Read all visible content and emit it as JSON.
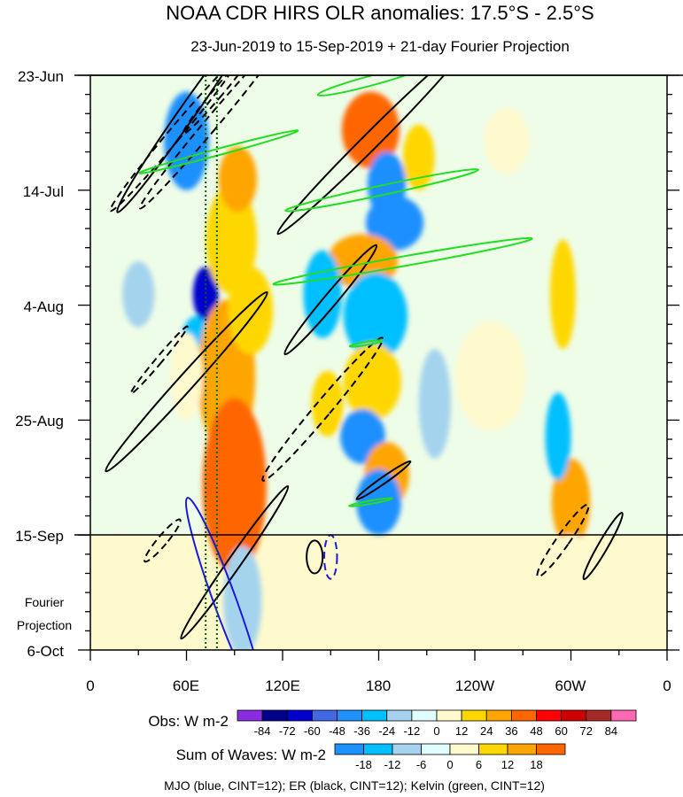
{
  "chart_data": {
    "type": "heatmap",
    "title": "NOAA CDR HIRS OLR anomalies: 17.5°S - 2.5°S",
    "subtitle": "23-Jun-2019 to 15-Sep-2019 + 21-day Fourier Projection",
    "y_tick_labels": [
      "23-Jun",
      "14-Jul",
      "4-Aug",
      "25-Aug",
      "15-Sep",
      "6-Oct"
    ],
    "projection_label_line1": "Fourier",
    "projection_label_line2": "Projection",
    "x_tick_labels": [
      "0",
      "60E",
      "120E",
      "180",
      "120W",
      "60W",
      "0"
    ],
    "x_range_deg": [
      0,
      360
    ],
    "y_range_days": [
      0,
      105
    ],
    "obs_end_day": 84,
    "obs_colorbar": {
      "label": "Obs: W m-2",
      "levels": [
        "-84",
        "-72",
        "-60",
        "-48",
        "-36",
        "-24",
        "-12",
        "0",
        "12",
        "24",
        "36",
        "48",
        "60",
        "72",
        "84"
      ],
      "colors": [
        "#8a2be2",
        "#00008b",
        "#0000cd",
        "#4169e1",
        "#1e90ff",
        "#00bfff",
        "#a4d3ee",
        "#e0ffff",
        "#fffacd",
        "#ffd700",
        "#ffa500",
        "#ff6600",
        "#ff0000",
        "#cd0000",
        "#a52a2a",
        "#ff69b4"
      ]
    },
    "waves_colorbar": {
      "label": "Sum of Waves: W m-2",
      "levels": [
        "-18",
        "-12",
        "-6",
        "0",
        "6",
        "12",
        "18"
      ],
      "colors": [
        "#1e90ff",
        "#00bfff",
        "#a4d3ee",
        "#e0ffff",
        "#fffacd",
        "#ffd700",
        "#ffa500",
        "#ff6600"
      ]
    },
    "footer": "MJO (blue, CINT=12); ER (black, CINT=12); Kelvin (green, CINT=12)",
    "blobs": [
      {
        "lon": 60,
        "day": 12,
        "rx": 14,
        "ry": 9,
        "v": -40
      },
      {
        "lon": 72,
        "day": 40,
        "rx": 8,
        "ry": 5,
        "v": -60
      },
      {
        "lon": 66,
        "day": 50,
        "rx": 10,
        "ry": 6,
        "v": -30
      },
      {
        "lon": 88,
        "day": 30,
        "rx": 16,
        "ry": 10,
        "v": 24
      },
      {
        "lon": 85,
        "day": 55,
        "rx": 18,
        "ry": 14,
        "v": 36
      },
      {
        "lon": 90,
        "day": 75,
        "rx": 20,
        "ry": 16,
        "v": 48
      },
      {
        "lon": 92,
        "day": 19,
        "rx": 12,
        "ry": 6,
        "v": 36
      },
      {
        "lon": 100,
        "day": 43,
        "rx": 14,
        "ry": 8,
        "v": 24
      },
      {
        "lon": 175,
        "day": 10,
        "rx": 18,
        "ry": 7,
        "v": 48
      },
      {
        "lon": 185,
        "day": 20,
        "rx": 12,
        "ry": 6,
        "v": -36
      },
      {
        "lon": 190,
        "day": 27,
        "rx": 18,
        "ry": 5,
        "v": -40
      },
      {
        "lon": 170,
        "day": 34,
        "rx": 22,
        "ry": 5,
        "v": 36
      },
      {
        "lon": 178,
        "day": 44,
        "rx": 20,
        "ry": 8,
        "v": -30
      },
      {
        "lon": 176,
        "day": 56,
        "rx": 18,
        "ry": 7,
        "v": 24
      },
      {
        "lon": 170,
        "day": 66,
        "rx": 14,
        "ry": 5,
        "v": -36
      },
      {
        "lon": 185,
        "day": 73,
        "rx": 14,
        "ry": 6,
        "v": 36
      },
      {
        "lon": 180,
        "day": 78,
        "rx": 14,
        "ry": 6,
        "v": -40
      },
      {
        "lon": 145,
        "day": 40,
        "rx": 12,
        "ry": 8,
        "v": -24
      },
      {
        "lon": 148,
        "day": 60,
        "rx": 10,
        "ry": 6,
        "v": 24
      },
      {
        "lon": 295,
        "day": 40,
        "rx": 8,
        "ry": 10,
        "v": 24
      },
      {
        "lon": 300,
        "day": 78,
        "rx": 12,
        "ry": 8,
        "v": 36
      },
      {
        "lon": 292,
        "day": 66,
        "rx": 8,
        "ry": 8,
        "v": -24
      },
      {
        "lon": 205,
        "day": 15,
        "rx": 10,
        "ry": 6,
        "v": 24
      },
      {
        "lon": 260,
        "day": 12,
        "rx": 14,
        "ry": 6,
        "v": 12
      },
      {
        "lon": 250,
        "day": 55,
        "rx": 22,
        "ry": 10,
        "v": 12
      },
      {
        "lon": 60,
        "day": 55,
        "rx": 10,
        "ry": 8,
        "v": 12
      },
      {
        "lon": 30,
        "day": 40,
        "rx": 10,
        "ry": 6,
        "v": -12
      },
      {
        "lon": 215,
        "day": 60,
        "rx": 10,
        "ry": 10,
        "v": -12
      },
      {
        "lon": 95,
        "day": 96,
        "rx": 12,
        "ry": 10,
        "v": -12
      },
      {
        "lon": 20,
        "day": 92,
        "rx": 16,
        "ry": 8,
        "v": 6
      },
      {
        "lon": 200,
        "day": 95,
        "rx": 30,
        "ry": 7,
        "v": 6
      },
      {
        "lon": 300,
        "day": 90,
        "rx": 18,
        "ry": 6,
        "v": 6
      }
    ],
    "er_contours": [
      {
        "lon": 60,
        "day": 7,
        "rx": 5,
        "ry": 22,
        "rot": 35,
        "dash": false
      },
      {
        "lon": 52,
        "day": 11,
        "rx": 4,
        "ry": 18,
        "rot": 40,
        "dash": true
      },
      {
        "lon": 75,
        "day": 9,
        "rx": 4,
        "ry": 20,
        "rot": 40,
        "dash": true
      },
      {
        "lon": 175,
        "day": 12,
        "rx": 5,
        "ry": 24,
        "rot": 45,
        "dash": false
      },
      {
        "lon": 150,
        "day": 41,
        "rx": 4,
        "ry": 13,
        "rot": 40,
        "dash": false
      },
      {
        "lon": 60,
        "day": 56,
        "rx": 5,
        "ry": 22,
        "rot": 42,
        "dash": false
      },
      {
        "lon": 43,
        "day": 52,
        "rx": 2,
        "ry": 8,
        "rot": 40,
        "dash": true
      },
      {
        "lon": 145,
        "day": 61,
        "rx": 5,
        "ry": 17,
        "rot": 40,
        "dash": true
      },
      {
        "lon": 183,
        "day": 74,
        "rx": 2,
        "ry": 6,
        "rot": 55,
        "dash": false
      },
      {
        "lon": 90,
        "day": 89,
        "rx": 4,
        "ry": 17,
        "rot": 35,
        "dash": false
      },
      {
        "lon": 140,
        "day": 88,
        "rx": 5,
        "ry": 3,
        "rot": 0,
        "dash": false
      },
      {
        "lon": 295,
        "day": 85,
        "rx": 4,
        "ry": 8,
        "rot": 35,
        "dash": true
      },
      {
        "lon": 320,
        "day": 86,
        "rx": 3,
        "ry": 7,
        "rot": 30,
        "dash": false
      },
      {
        "lon": 45,
        "day": 85,
        "rx": 3,
        "ry": 5,
        "rot": 40,
        "dash": true
      },
      {
        "lon": 80,
        "day": 3,
        "rx": 3,
        "ry": 10,
        "rot": 40,
        "dash": true
      }
    ],
    "mjo_contours": [
      {
        "lon": 84,
        "day": 96,
        "rx": 7,
        "ry": 20,
        "rot": -20,
        "dash": false
      },
      {
        "lon": 150,
        "day": 88,
        "rx": 4,
        "ry": 4,
        "rot": 0,
        "dash": true
      }
    ],
    "kelvin_contours": [
      {
        "lon": 175,
        "day": 1,
        "rx": 3,
        "ry": 10,
        "rot": 75
      },
      {
        "lon": 80,
        "day": 14,
        "rx": 2,
        "ry": 15,
        "rot": 75
      },
      {
        "lon": 182,
        "day": 21,
        "rx": 3,
        "ry": 18,
        "rot": 78
      },
      {
        "lon": 195,
        "day": 34,
        "rx": 3,
        "ry": 24,
        "rot": 80
      },
      {
        "lon": 172,
        "day": 49,
        "rx": 1,
        "ry": 3,
        "rot": 80
      },
      {
        "lon": 175,
        "day": 78,
        "rx": 1,
        "ry": 4,
        "rot": 80
      }
    ],
    "green_dotted_lines_lon": [
      72,
      79
    ]
  }
}
